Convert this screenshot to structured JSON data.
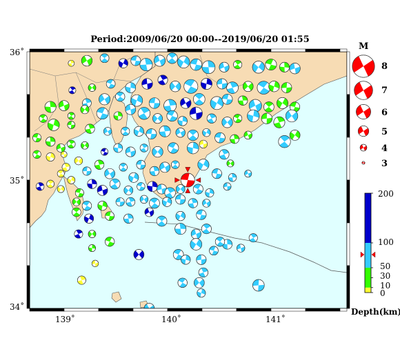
{
  "title": "Period:2009/06/20 00:00--2019/06/20 01:55",
  "axes": {
    "lon_ticks": [
      "139˚",
      "140˚",
      "141˚"
    ],
    "lat_ticks": [
      "36˚",
      "35˚",
      "34˚"
    ],
    "lon_range": [
      138.65,
      141.7
    ],
    "lat_range": [
      34.0,
      36.0
    ]
  },
  "colors": {
    "sea": "#e0ffff",
    "land": "#f7dcb4",
    "shallow": "#ffff33",
    "mid": "#33ff00",
    "deep": "#33ccff",
    "deepest": "#0000cc",
    "highlight": "#ff0000"
  },
  "magnitude_legend": {
    "header": "M",
    "values": [
      "8",
      "7",
      "6",
      "5",
      "4",
      "3"
    ]
  },
  "depth_scale": {
    "label": "Depth(km)",
    "ticks": [
      "200",
      "100",
      "50",
      "30",
      "10",
      "0"
    ]
  },
  "highlight_event": {
    "lon": 140.17,
    "lat": 35.0,
    "mag": 5.3
  },
  "events": [
    [
      139.05,
      35.91,
      3.6,
      "yellow"
    ],
    [
      139.2,
      35.93,
      4.6,
      "mid"
    ],
    [
      139.37,
      35.95,
      4.2,
      "deep"
    ],
    [
      139.55,
      35.91,
      4.3,
      "deepest"
    ],
    [
      139.67,
      35.93,
      4.4,
      "deep"
    ],
    [
      139.77,
      35.9,
      5.0,
      "deep"
    ],
    [
      139.9,
      35.93,
      4.7,
      "deep"
    ],
    [
      140.02,
      35.95,
      4.6,
      "deep"
    ],
    [
      140.13,
      35.92,
      4.9,
      "deep"
    ],
    [
      140.25,
      35.9,
      4.8,
      "deep"
    ],
    [
      140.37,
      35.88,
      5.1,
      "deep"
    ],
    [
      140.52,
      35.88,
      4.4,
      "deep"
    ],
    [
      140.65,
      35.9,
      4.1,
      "mid"
    ],
    [
      140.85,
      35.88,
      4.9,
      "deep"
    ],
    [
      140.97,
      35.9,
      4.7,
      "mid"
    ],
    [
      141.1,
      35.88,
      4.4,
      "mid"
    ],
    [
      141.2,
      35.87,
      4.6,
      "deep"
    ],
    [
      139.06,
      35.7,
      3.8,
      "deepest"
    ],
    [
      139.25,
      35.72,
      3.9,
      "mid"
    ],
    [
      139.43,
      35.75,
      4.2,
      "deep"
    ],
    [
      139.62,
      35.72,
      4.5,
      "deep"
    ],
    [
      139.78,
      35.75,
      4.6,
      "deepest"
    ],
    [
      139.93,
      35.78,
      4.4,
      "deepest"
    ],
    [
      140.05,
      35.73,
      4.6,
      "deep"
    ],
    [
      140.2,
      35.73,
      5.3,
      "deep"
    ],
    [
      140.35,
      35.75,
      4.7,
      "deepest"
    ],
    [
      140.5,
      35.75,
      4.5,
      "deep"
    ],
    [
      140.6,
      35.72,
      4.8,
      "deep"
    ],
    [
      140.75,
      35.73,
      4.5,
      "mid"
    ],
    [
      140.9,
      35.72,
      5.1,
      "deep"
    ],
    [
      141.0,
      35.73,
      4.6,
      "mid"
    ],
    [
      141.12,
      35.72,
      4.5,
      "mid"
    ],
    [
      139.2,
      35.6,
      4.2,
      "deep"
    ],
    [
      139.37,
      35.63,
      4.7,
      "deep"
    ],
    [
      139.52,
      35.65,
      4.3,
      "deep"
    ],
    [
      139.68,
      35.62,
      4.8,
      "deep"
    ],
    [
      139.85,
      35.6,
      4.6,
      "deep"
    ],
    [
      140.0,
      35.58,
      5.0,
      "deep"
    ],
    [
      140.15,
      35.6,
      4.6,
      "deepest"
    ],
    [
      140.28,
      35.63,
      4.8,
      "deep"
    ],
    [
      140.45,
      35.6,
      5.1,
      "deep"
    ],
    [
      140.55,
      35.63,
      4.5,
      "deep"
    ],
    [
      140.7,
      35.62,
      4.3,
      "mid"
    ],
    [
      140.82,
      35.58,
      5.0,
      "deep"
    ],
    [
      140.95,
      35.57,
      4.5,
      "mid"
    ],
    [
      141.08,
      35.6,
      4.7,
      "mid"
    ],
    [
      141.2,
      35.57,
      4.4,
      "mid"
    ],
    [
      138.85,
      35.57,
      4.7,
      "mid"
    ],
    [
      138.98,
      35.58,
      4.5,
      "mid"
    ],
    [
      139.05,
      35.5,
      3.8,
      "mid"
    ],
    [
      139.18,
      35.55,
      4.1,
      "mid"
    ],
    [
      139.35,
      35.52,
      4.8,
      "deep"
    ],
    [
      139.5,
      35.5,
      4.1,
      "mid"
    ],
    [
      139.62,
      35.55,
      4.5,
      "deep"
    ],
    [
      139.75,
      35.52,
      4.9,
      "deep"
    ],
    [
      139.88,
      35.48,
      4.4,
      "deep"
    ],
    [
      140.02,
      35.5,
      4.6,
      "deep"
    ],
    [
      140.12,
      35.46,
      4.3,
      "deep"
    ],
    [
      140.25,
      35.52,
      5.0,
      "deepest"
    ],
    [
      140.4,
      35.48,
      4.3,
      "deep"
    ],
    [
      140.55,
      35.45,
      4.6,
      "deep"
    ],
    [
      140.65,
      35.48,
      4.1,
      "mid"
    ],
    [
      140.8,
      35.5,
      4.9,
      "deep"
    ],
    [
      140.93,
      35.48,
      4.6,
      "mid"
    ],
    [
      141.05,
      35.45,
      4.7,
      "mid"
    ],
    [
      141.17,
      35.5,
      4.9,
      "deep"
    ],
    [
      138.78,
      35.48,
      4.0,
      "mid"
    ],
    [
      138.88,
      35.43,
      4.8,
      "mid"
    ],
    [
      139.05,
      35.43,
      3.9,
      "mid"
    ],
    [
      139.23,
      35.4,
      4.3,
      "mid"
    ],
    [
      139.4,
      35.38,
      4.0,
      "deep"
    ],
    [
      139.57,
      35.38,
      4.1,
      "deep"
    ],
    [
      139.7,
      35.38,
      4.4,
      "deep"
    ],
    [
      139.82,
      35.36,
      4.5,
      "deep"
    ],
    [
      139.95,
      35.38,
      4.7,
      "deep"
    ],
    [
      140.1,
      35.37,
      4.3,
      "deep"
    ],
    [
      140.22,
      35.35,
      4.6,
      "deep"
    ],
    [
      140.35,
      35.37,
      4.0,
      "deep"
    ],
    [
      140.48,
      35.33,
      4.5,
      "deep"
    ],
    [
      140.62,
      35.32,
      4.2,
      "mid"
    ],
    [
      140.75,
      35.35,
      4.0,
      "mid"
    ],
    [
      141.1,
      35.3,
      4.9,
      "deep"
    ],
    [
      141.2,
      35.35,
      4.5,
      "mid"
    ],
    [
      138.72,
      35.33,
      4.1,
      "mid"
    ],
    [
      138.85,
      35.3,
      4.3,
      "mid"
    ],
    [
      138.95,
      35.25,
      4.1,
      "mid"
    ],
    [
      139.05,
      35.28,
      4.0,
      "mid"
    ],
    [
      139.18,
      35.27,
      3.9,
      "mid"
    ],
    [
      139.37,
      35.22,
      3.8,
      "deepest"
    ],
    [
      139.5,
      35.25,
      4.2,
      "deep"
    ],
    [
      139.62,
      35.22,
      4.4,
      "deep"
    ],
    [
      139.75,
      35.25,
      4.0,
      "deep"
    ],
    [
      139.88,
      35.22,
      4.6,
      "deep"
    ],
    [
      140.03,
      35.25,
      4.6,
      "deep"
    ],
    [
      140.22,
      35.25,
      4.8,
      "deep"
    ],
    [
      140.32,
      35.28,
      4.0,
      "yellow"
    ],
    [
      140.52,
      35.2,
      4.4,
      "deep"
    ],
    [
      140.58,
      35.13,
      3.8,
      "mid"
    ],
    [
      138.72,
      35.2,
      4.0,
      "mid"
    ],
    [
      138.85,
      35.18,
      4.1,
      "yellow"
    ],
    [
      138.98,
      35.2,
      3.6,
      "yellow"
    ],
    [
      139.0,
      35.1,
      4.0,
      "yellow"
    ],
    [
      139.12,
      35.15,
      4.0,
      "yellow"
    ],
    [
      138.95,
      35.05,
      3.8,
      "yellow"
    ],
    [
      139.05,
      35.0,
      3.9,
      "yellow"
    ],
    [
      139.2,
      35.07,
      4.1,
      "deep"
    ],
    [
      139.32,
      35.12,
      4.3,
      "mid"
    ],
    [
      139.42,
      35.05,
      4.5,
      "deep"
    ],
    [
      139.55,
      35.1,
      4.0,
      "deep"
    ],
    [
      139.65,
      35.02,
      4.4,
      "deep"
    ],
    [
      139.72,
      35.12,
      4.2,
      "deep"
    ],
    [
      139.85,
      35.07,
      4.3,
      "deep"
    ],
    [
      139.95,
      35.1,
      4.5,
      "deep"
    ],
    [
      140.05,
      35.12,
      4.0,
      "deep"
    ],
    [
      140.32,
      35.12,
      4.7,
      "deep"
    ],
    [
      140.45,
      35.05,
      4.4,
      "deep"
    ],
    [
      140.6,
      35.02,
      4.0,
      "deep"
    ],
    [
      140.75,
      35.05,
      3.8,
      "deep"
    ],
    [
      138.85,
      34.97,
      3.9,
      "yellow"
    ],
    [
      138.95,
      34.93,
      3.8,
      "yellow"
    ],
    [
      139.13,
      34.9,
      4.1,
      "mid"
    ],
    [
      139.25,
      34.97,
      4.3,
      "deepest"
    ],
    [
      139.35,
      34.92,
      4.5,
      "deepest"
    ],
    [
      139.47,
      34.97,
      4.5,
      "deep"
    ],
    [
      139.6,
      34.92,
      4.2,
      "deep"
    ],
    [
      139.72,
      34.95,
      4.0,
      "deep"
    ],
    [
      139.83,
      34.95,
      4.5,
      "deepest"
    ],
    [
      139.92,
      34.93,
      4.4,
      "deep"
    ],
    [
      140.0,
      34.9,
      4.6,
      "deep"
    ],
    [
      140.1,
      34.93,
      4.2,
      "deep"
    ],
    [
      140.27,
      34.93,
      4.4,
      "deep"
    ],
    [
      140.38,
      34.9,
      4.1,
      "deep"
    ],
    [
      140.55,
      34.95,
      3.9,
      "deep"
    ],
    [
      138.75,
      34.95,
      4.0,
      "deepest"
    ],
    [
      139.1,
      34.83,
      4.0,
      "mid"
    ],
    [
      139.2,
      34.8,
      4.3,
      "deep"
    ],
    [
      139.35,
      34.8,
      4.3,
      "mid"
    ],
    [
      139.52,
      34.83,
      4.1,
      "deep"
    ],
    [
      139.62,
      34.83,
      4.2,
      "deep"
    ],
    [
      139.75,
      34.85,
      4.0,
      "deep"
    ],
    [
      139.85,
      34.82,
      4.5,
      "deep"
    ],
    [
      139.97,
      34.83,
      4.3,
      "deep"
    ],
    [
      140.1,
      34.85,
      4.4,
      "deep"
    ],
    [
      140.22,
      34.82,
      4.3,
      "deep"
    ],
    [
      140.35,
      34.82,
      4.0,
      "deep"
    ],
    [
      139.1,
      34.75,
      4.2,
      "mid"
    ],
    [
      139.22,
      34.7,
      4.3,
      "deepest"
    ],
    [
      139.42,
      34.72,
      4.2,
      "mid"
    ],
    [
      139.6,
      34.7,
      4.3,
      "deep"
    ],
    [
      139.8,
      34.75,
      4.2,
      "deepest"
    ],
    [
      139.92,
      34.68,
      4.5,
      "deep"
    ],
    [
      140.1,
      34.72,
      4.3,
      "deep"
    ],
    [
      140.3,
      34.73,
      4.4,
      "deep"
    ],
    [
      140.1,
      34.62,
      4.7,
      "deep"
    ],
    [
      140.25,
      34.58,
      4.4,
      "deep"
    ],
    [
      140.35,
      34.62,
      4.4,
      "deep"
    ],
    [
      140.25,
      34.5,
      4.8,
      "deep"
    ],
    [
      140.42,
      34.45,
      4.2,
      "deep"
    ],
    [
      140.55,
      34.5,
      4.4,
      "deep"
    ],
    [
      140.68,
      34.47,
      4.0,
      "deep"
    ],
    [
      140.8,
      34.55,
      4.1,
      "deep"
    ],
    [
      139.25,
      34.58,
      3.9,
      "mid"
    ],
    [
      139.42,
      34.52,
      4.3,
      "mid"
    ],
    [
      139.25,
      34.47,
      3.8,
      "mid"
    ],
    [
      139.28,
      34.35,
      3.7,
      "yellow"
    ],
    [
      139.12,
      34.58,
      4.1,
      "deepest"
    ],
    [
      139.7,
      34.42,
      4.5,
      "deepest"
    ],
    [
      140.08,
      34.42,
      4.5,
      "deep"
    ],
    [
      140.15,
      34.38,
      4.3,
      "deep"
    ],
    [
      140.3,
      34.38,
      4.4,
      "deep"
    ],
    [
      140.32,
      34.28,
      4.3,
      "deep"
    ],
    [
      140.28,
      34.2,
      4.5,
      "deep"
    ],
    [
      140.12,
      34.2,
      4.3,
      "deep"
    ],
    [
      140.3,
      34.12,
      4.1,
      "deep"
    ],
    [
      140.85,
      34.18,
      4.8,
      "deep"
    ],
    [
      139.15,
      34.22,
      4.1,
      "yellow"
    ],
    [
      139.8,
      34.0,
      4.5,
      "deep"
    ],
    [
      140.48,
      34.52,
      4.3,
      "deep"
    ]
  ]
}
